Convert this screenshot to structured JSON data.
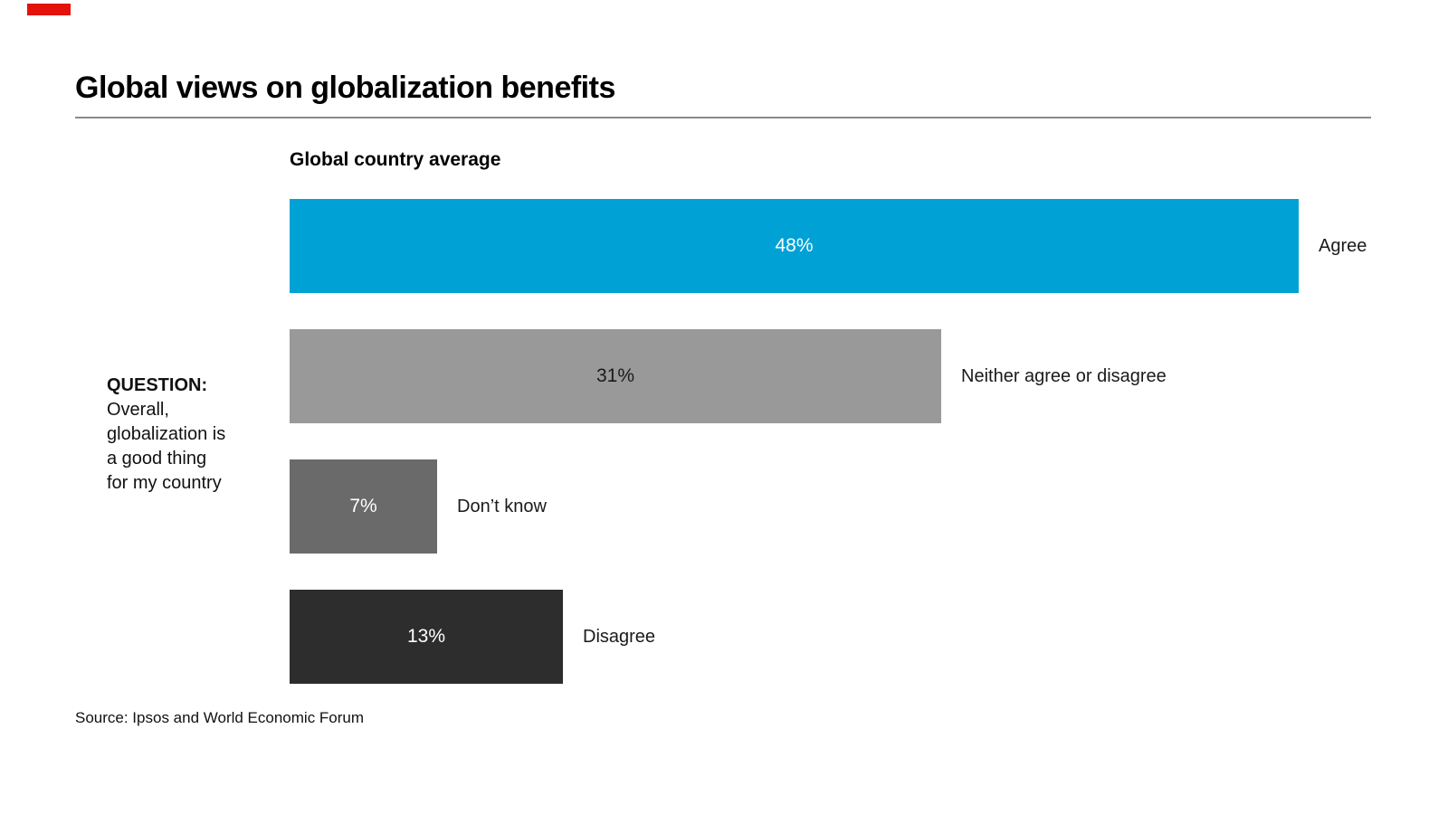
{
  "brand": {
    "color": "#e3120b"
  },
  "header": {
    "title": "Global views on globalization benefits"
  },
  "question": {
    "label": "QUESTION:",
    "lines": [
      "Overall,",
      "globalization is",
      "a good thing",
      "for my country"
    ]
  },
  "source": "Source: Ipsos and World Economic Forum",
  "chart_data": {
    "type": "bar",
    "orientation": "horizontal",
    "title": "Global country average",
    "categories": [
      "Agree",
      "Neither agree or disagree",
      "Don’t know",
      "Disagree"
    ],
    "values": [
      48,
      31,
      7,
      13
    ],
    "value_labels": [
      "48%",
      "31%",
      "7%",
      "13%"
    ],
    "unit": "%",
    "xlim": [
      0,
      48
    ],
    "grid": false,
    "legend": "none",
    "bar_colors": [
      "#00a2d6",
      "#999999",
      "#6a6a6a",
      "#2d2d2d"
    ],
    "value_label_colors": [
      "#ffffff",
      "#1a1a1a",
      "#ffffff",
      "#ffffff"
    ]
  }
}
